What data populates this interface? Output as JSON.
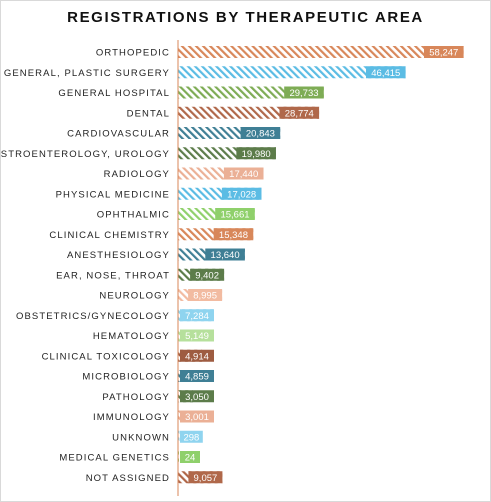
{
  "chart_data": {
    "type": "bar",
    "orientation": "horizontal",
    "title": "REGISTRATIONS  BY THERAPEUTIC  AREA",
    "categories": [
      "ORTHOPEDIC",
      "GENERAL, PLASTIC SURGERY",
      "GENERAL HOSPITAL",
      "DENTAL",
      "CARDIOVASCULAR",
      "GASTROENTEROLOGY, UROLOGY",
      "RADIOLOGY",
      "PHYSICAL MEDICINE",
      "OPHTHALMIC",
      "CLINICAL CHEMISTRY",
      "ANESTHESIOLOGY",
      "EAR, NOSE, THROAT",
      "NEUROLOGY",
      "OBSTETRICS/GYNECOLOGY",
      "HEMATOLOGY",
      "CLINICAL TOXICOLOGY",
      "MICROBIOLOGY",
      "PATHOLOGY",
      "IMMUNOLOGY",
      "UNKNOWN",
      "MEDICAL GENETICS",
      "NOT ASSIGNED"
    ],
    "values": [
      58247,
      46415,
      29733,
      28774,
      20843,
      19980,
      17440,
      17028,
      15661,
      15348,
      13640,
      9402,
      8995,
      7284,
      5149,
      4914,
      4859,
      3050,
      3001,
      298,
      24,
      9057
    ],
    "value_labels": [
      "58,247",
      "46,415",
      "29,733",
      "28,774",
      "20,843",
      "19,980",
      "17,440",
      "17,028",
      "15,661",
      "15,348",
      "13,640",
      "9,402",
      "8,995",
      "7,284",
      "5,149",
      "4,914",
      "4,859",
      "3,050",
      "3,001",
      "298",
      "24",
      "9,057"
    ],
    "colors": [
      "#d8875a",
      "#5bbce4",
      "#7eac55",
      "#b0684a",
      "#3f7f95",
      "#5c7c4a",
      "#ebb096",
      "#5bbce4",
      "#8fd06b",
      "#d8875a",
      "#3f7f95",
      "#5c7c4a",
      "#f2bba1",
      "#8fd4ef",
      "#b6e09c",
      "#9e5c41",
      "#3f7f95",
      "#5c7c4a",
      "#ebb096",
      "#8fd4ef",
      "#8fd06b",
      "#b0684a"
    ],
    "axis_color": "#d8875a",
    "bar_style": "hatched bar with solid value label box at end",
    "xlim": [
      0,
      62000
    ],
    "grid": false,
    "legend": "none"
  }
}
